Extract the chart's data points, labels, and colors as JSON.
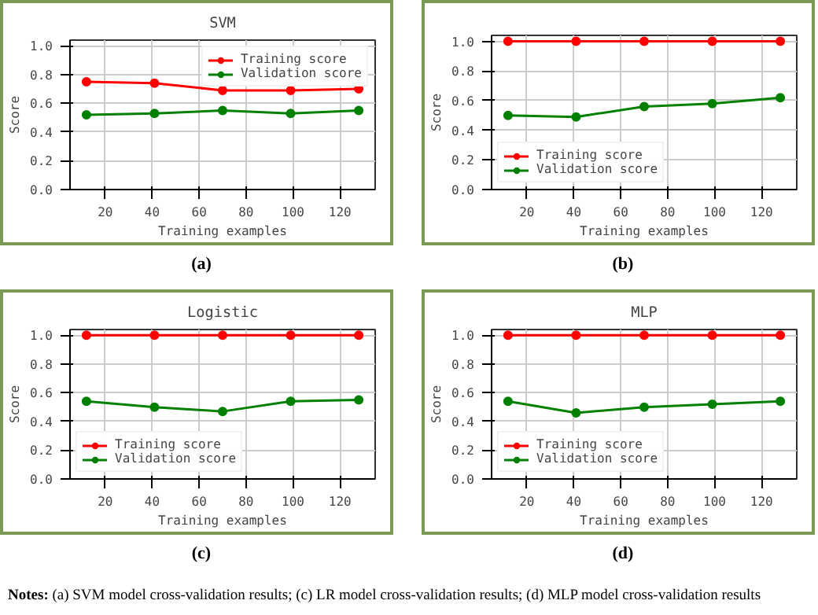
{
  "chart_data": [
    {
      "type": "line",
      "title": "SVM",
      "xlabel": "Training examples",
      "ylabel": "Score",
      "x": [
        12,
        41,
        70,
        99,
        128
      ],
      "xlim": [
        5,
        135
      ],
      "xticks": [
        20,
        40,
        60,
        80,
        100,
        120
      ],
      "ylim": [
        0,
        1.04
      ],
      "yticks": [
        {
          "value": 0,
          "label": "0.0"
        },
        {
          "value": 0.2,
          "label": "0.2"
        },
        {
          "value": 0.4,
          "label": "0.4"
        },
        {
          "value": 0.6,
          "label": "0.6"
        },
        {
          "value": 0.8,
          "label": "0.8"
        },
        {
          "value": 1,
          "label": "1.0"
        }
      ],
      "grid": true,
      "legend": "top right",
      "marker": "circle",
      "annotations": [
        "(a)"
      ],
      "series": [
        {
          "name": "Training score",
          "color": "#ff0000",
          "values": [
            0.75,
            0.74,
            0.69,
            0.69,
            0.7
          ]
        },
        {
          "name": "Validation score",
          "color": "#008000",
          "values": [
            0.52,
            0.53,
            0.55,
            0.53,
            0.55
          ]
        }
      ]
    },
    {
      "type": "line",
      "xlabel": "Training examples",
      "ylabel": "Score",
      "x": [
        12,
        41,
        70,
        99,
        128
      ],
      "xlim": [
        5,
        135
      ],
      "xticks": [
        20,
        40,
        60,
        80,
        100,
        120
      ],
      "ylim": [
        0,
        1.04
      ],
      "yticks": [
        {
          "value": 0,
          "label": "0.0"
        },
        {
          "value": 0.2,
          "label": "0.2"
        },
        {
          "value": 0.4,
          "label": "0.4"
        },
        {
          "value": 0.6,
          "label": "0.6"
        },
        {
          "value": 0.8,
          "label": "0.8"
        },
        {
          "value": 1,
          "label": "1.0"
        }
      ],
      "grid": true,
      "legend": "bottom left",
      "marker": "circle",
      "annotations": [
        "(b)"
      ],
      "series": [
        {
          "name": "Training score",
          "color": "#ff0000",
          "values": [
            1,
            1,
            1,
            1,
            1
          ]
        },
        {
          "name": "Validation score",
          "color": "#008000",
          "values": [
            0.5,
            0.49,
            0.56,
            0.58,
            0.62
          ]
        }
      ]
    },
    {
      "type": "line",
      "title": "Logistic",
      "xlabel": "Training examples",
      "ylabel": "Score",
      "x": [
        12,
        41,
        70,
        99,
        128
      ],
      "xlim": [
        5,
        135
      ],
      "xticks": [
        20,
        40,
        60,
        80,
        100,
        120
      ],
      "ylim": [
        0,
        1.04
      ],
      "yticks": [
        {
          "value": 0,
          "label": "0.0"
        },
        {
          "value": 0.2,
          "label": "0.2"
        },
        {
          "value": 0.4,
          "label": "0.4"
        },
        {
          "value": 0.6,
          "label": "0.6"
        },
        {
          "value": 0.8,
          "label": "0.8"
        },
        {
          "value": 1,
          "label": "1.0"
        }
      ],
      "grid": true,
      "legend": "bottom left",
      "marker": "circle",
      "annotations": [
        "(c)"
      ],
      "series": [
        {
          "name": "Training score",
          "color": "#ff0000",
          "values": [
            1,
            1,
            1,
            1,
            1
          ]
        },
        {
          "name": "Validation score",
          "color": "#008000",
          "values": [
            0.54,
            0.5,
            0.47,
            0.54,
            0.55
          ]
        }
      ]
    },
    {
      "type": "line",
      "title": "MLP",
      "xlabel": "Training examples",
      "ylabel": "Score",
      "x": [
        12,
        41,
        70,
        99,
        128
      ],
      "xlim": [
        5,
        135
      ],
      "xticks": [
        20,
        40,
        60,
        80,
        100,
        120
      ],
      "ylim": [
        0,
        1.04
      ],
      "yticks": [
        {
          "value": 0,
          "label": "0.0"
        },
        {
          "value": 0.2,
          "label": "0.2"
        },
        {
          "value": 0.4,
          "label": "0.4"
        },
        {
          "value": 0.6,
          "label": "0.6"
        },
        {
          "value": 0.8,
          "label": "0.8"
        },
        {
          "value": 1,
          "label": "1.0"
        }
      ],
      "grid": true,
      "legend": "bottom left",
      "marker": "circle",
      "annotations": [
        "(d)",
        "Notes: (a) SVM model cross-validation results; (c) LR model cross-validation results; (d) MLP model cross-validation results"
      ],
      "series": [
        {
          "name": "Training score",
          "color": "#ff0000",
          "values": [
            1,
            1,
            1,
            1,
            1
          ]
        },
        {
          "name": "Validation score",
          "color": "#008000",
          "values": [
            0.54,
            0.46,
            0.5,
            0.52,
            0.54
          ]
        }
      ]
    }
  ]
}
